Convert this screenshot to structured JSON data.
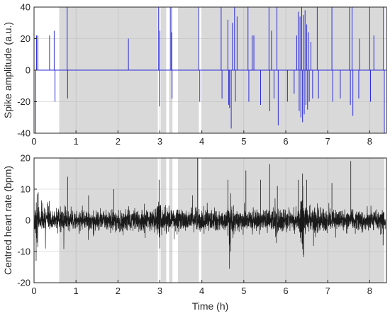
{
  "chart_data": [
    {
      "type": "line",
      "ylabel": "Spike amplitude (a.u.)",
      "xlabel": "",
      "xlim": [
        0,
        8.4
      ],
      "ylim": [
        -40,
        40
      ],
      "yticks": [
        -40,
        -20,
        0,
        20,
        40
      ],
      "xticks": [
        0,
        1,
        2,
        3,
        4,
        5,
        6,
        7,
        8
      ],
      "grid": true,
      "colors": {
        "series": "#2b2bd9",
        "shade": "#d9d9d9"
      },
      "shaded_intervals": [
        [
          0.6,
          2.95
        ],
        [
          3.02,
          3.15
        ],
        [
          3.22,
          3.3
        ],
        [
          3.43,
          3.93
        ],
        [
          4.0,
          8.35
        ]
      ],
      "baseline": 0,
      "spikes": [
        {
          "x": 0.04,
          "y": -40
        },
        {
          "x": 0.06,
          "y": 22
        },
        {
          "x": 0.09,
          "y": 22
        },
        {
          "x": 0.37,
          "y": 22
        },
        {
          "x": 0.48,
          "y": 25
        },
        {
          "x": 0.5,
          "y": -20
        },
        {
          "x": 0.79,
          "y": 40
        },
        {
          "x": 0.8,
          "y": -18
        },
        {
          "x": 2.25,
          "y": 20
        },
        {
          "x": 2.97,
          "y": 40
        },
        {
          "x": 2.99,
          "y": -23
        },
        {
          "x": 3.0,
          "y": 25
        },
        {
          "x": 3.26,
          "y": 40
        },
        {
          "x": 3.28,
          "y": 24
        },
        {
          "x": 3.29,
          "y": -18
        },
        {
          "x": 3.93,
          "y": 40
        },
        {
          "x": 3.95,
          "y": -20
        },
        {
          "x": 4.46,
          "y": 40
        },
        {
          "x": 4.48,
          "y": -18
        },
        {
          "x": 4.62,
          "y": 32
        },
        {
          "x": 4.64,
          "y": -22
        },
        {
          "x": 4.66,
          "y": -24
        },
        {
          "x": 4.7,
          "y": -37
        },
        {
          "x": 4.73,
          "y": 30
        },
        {
          "x": 4.78,
          "y": 40
        },
        {
          "x": 4.8,
          "y": -20
        },
        {
          "x": 4.84,
          "y": 34
        },
        {
          "x": 5.1,
          "y": 40
        },
        {
          "x": 5.12,
          "y": -20
        },
        {
          "x": 5.2,
          "y": 22
        },
        {
          "x": 5.24,
          "y": 22
        },
        {
          "x": 5.4,
          "y": -22
        },
        {
          "x": 5.6,
          "y": 40
        },
        {
          "x": 5.62,
          "y": -26
        },
        {
          "x": 5.66,
          "y": 25
        },
        {
          "x": 5.72,
          "y": -18
        },
        {
          "x": 5.79,
          "y": 40
        },
        {
          "x": 5.82,
          "y": -35
        },
        {
          "x": 6.04,
          "y": -20
        },
        {
          "x": 6.2,
          "y": -15
        },
        {
          "x": 6.26,
          "y": 22
        },
        {
          "x": 6.3,
          "y": 37
        },
        {
          "x": 6.32,
          "y": -26
        },
        {
          "x": 6.34,
          "y": 34
        },
        {
          "x": 6.36,
          "y": -30
        },
        {
          "x": 6.38,
          "y": 40
        },
        {
          "x": 6.4,
          "y": -33
        },
        {
          "x": 6.42,
          "y": 35
        },
        {
          "x": 6.44,
          "y": -28
        },
        {
          "x": 6.46,
          "y": 38
        },
        {
          "x": 6.48,
          "y": -22
        },
        {
          "x": 6.5,
          "y": 29
        },
        {
          "x": 6.52,
          "y": -25
        },
        {
          "x": 6.54,
          "y": 24
        },
        {
          "x": 6.56,
          "y": -20
        },
        {
          "x": 6.6,
          "y": 18
        },
        {
          "x": 6.64,
          "y": -18
        },
        {
          "x": 6.75,
          "y": 40
        },
        {
          "x": 6.78,
          "y": -18
        },
        {
          "x": 7.1,
          "y": 40
        },
        {
          "x": 7.12,
          "y": -20
        },
        {
          "x": 7.3,
          "y": -18
        },
        {
          "x": 7.52,
          "y": 40
        },
        {
          "x": 7.54,
          "y": -22
        },
        {
          "x": 7.58,
          "y": 40
        },
        {
          "x": 7.6,
          "y": -29
        },
        {
          "x": 7.74,
          "y": -18
        },
        {
          "x": 7.76,
          "y": 20
        },
        {
          "x": 8.0,
          "y": 40
        },
        {
          "x": 8.02,
          "y": -20
        },
        {
          "x": 8.1,
          "y": 22
        },
        {
          "x": 8.33,
          "y": 40
        },
        {
          "x": 8.35,
          "y": -40
        }
      ]
    },
    {
      "type": "line",
      "ylabel": "Centred heart rate (bpm)",
      "xlabel": "Time (h)",
      "xlim": [
        0,
        8.4
      ],
      "ylim": [
        -20,
        20
      ],
      "yticks": [
        -20,
        -10,
        0,
        10,
        20
      ],
      "xticks": [
        0,
        1,
        2,
        3,
        4,
        5,
        6,
        7,
        8
      ],
      "grid": true,
      "colors": {
        "series": "#1a1a1a",
        "shade": "#d9d9d9"
      },
      "shaded_intervals": [
        [
          0.6,
          2.95
        ],
        [
          3.02,
          3.15
        ],
        [
          3.22,
          3.3
        ],
        [
          3.43,
          3.93
        ],
        [
          4.0,
          8.35
        ]
      ],
      "noise": {
        "base_amplitude": 2.8,
        "sample_step_h": 0.0025
      },
      "bursts": [
        {
          "x": 0.05,
          "amp": 11
        },
        {
          "x": 0.3,
          "amp": 8
        },
        {
          "x": 2.98,
          "amp": 10
        },
        {
          "x": 4.7,
          "amp": 9
        },
        {
          "x": 5.8,
          "amp": 7
        },
        {
          "x": 6.4,
          "amp": 14
        },
        {
          "x": 6.7,
          "amp": 8
        }
      ],
      "peaks": [
        {
          "x": 0.05,
          "y": -13
        },
        {
          "x": 0.1,
          "y": 9
        },
        {
          "x": 0.8,
          "y": 14
        },
        {
          "x": 1.3,
          "y": 8
        },
        {
          "x": 1.9,
          "y": 10
        },
        {
          "x": 2.98,
          "y": 13
        },
        {
          "x": 3.0,
          "y": -9
        },
        {
          "x": 3.9,
          "y": 20
        },
        {
          "x": 4.62,
          "y": 13
        },
        {
          "x": 4.68,
          "y": -10
        },
        {
          "x": 5.05,
          "y": 16
        },
        {
          "x": 5.4,
          "y": 13
        },
        {
          "x": 5.62,
          "y": 18
        },
        {
          "x": 5.8,
          "y": 11
        },
        {
          "x": 6.3,
          "y": 13
        },
        {
          "x": 6.4,
          "y": 15
        },
        {
          "x": 6.42,
          "y": -11
        },
        {
          "x": 6.5,
          "y": 13
        },
        {
          "x": 7.1,
          "y": 12
        },
        {
          "x": 7.55,
          "y": 19
        },
        {
          "x": 8.32,
          "y": -8
        }
      ]
    }
  ]
}
